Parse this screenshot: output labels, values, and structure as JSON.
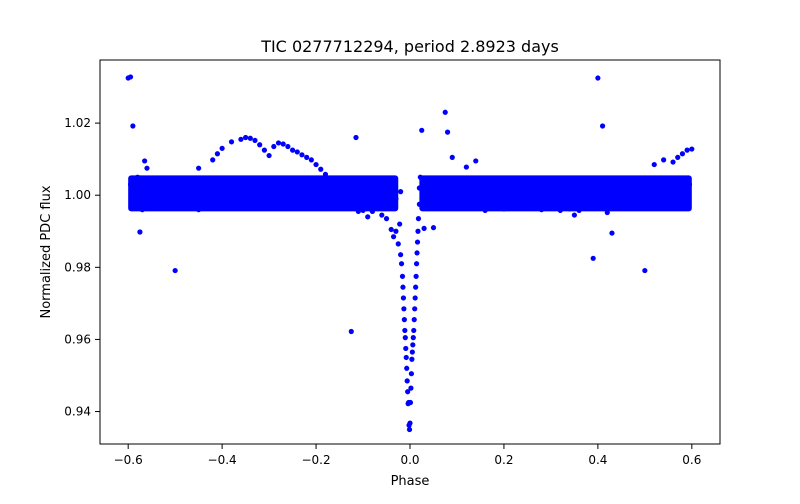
{
  "chart_data": {
    "type": "scatter",
    "title": "TIC 0277712294, period 2.8923 days",
    "xlabel": "Phase",
    "ylabel": "Normalized PDC flux",
    "xlim": [
      -0.66,
      0.66
    ],
    "ylim": [
      0.931,
      1.0375
    ],
    "xticks": [
      -0.6,
      -0.4,
      -0.2,
      0.0,
      0.2,
      0.4,
      0.6
    ],
    "xtick_labels": [
      "−0.6",
      "−0.4",
      "−0.2",
      "0.0",
      "0.2",
      "0.4",
      "0.6"
    ],
    "yticks": [
      0.94,
      0.96,
      0.98,
      1.0,
      1.02
    ],
    "ytick_labels": [
      "0.94",
      "0.96",
      "0.98",
      "1.00",
      "1.02"
    ],
    "grid": false,
    "marker_color": "#0000ff",
    "series": [
      {
        "x": [
          -0.595,
          -0.59,
          -0.58,
          -0.57,
          -0.56,
          -0.55,
          -0.54,
          -0.53,
          -0.52,
          -0.51,
          -0.5,
          -0.49,
          -0.48,
          -0.47,
          -0.46,
          -0.45,
          -0.44,
          -0.43,
          -0.42,
          -0.41,
          -0.4,
          -0.39,
          -0.38,
          -0.37,
          -0.36,
          -0.35,
          -0.34,
          -0.33,
          -0.32,
          -0.31,
          -0.3,
          -0.29,
          -0.28,
          -0.27,
          -0.26,
          -0.25,
          -0.24,
          -0.23,
          -0.22,
          -0.21,
          -0.2,
          -0.19,
          -0.18,
          -0.17,
          -0.16,
          -0.15,
          -0.14,
          -0.13,
          -0.12,
          -0.11,
          -0.1,
          -0.09,
          -0.08,
          -0.07,
          -0.06,
          -0.05,
          -0.04,
          -0.03,
          -0.02,
          0.02,
          0.03,
          0.04,
          0.05,
          0.06,
          0.07,
          0.08,
          0.09,
          0.1,
          0.11,
          0.12,
          0.13,
          0.14,
          0.15,
          0.16,
          0.17,
          0.18,
          0.19,
          0.2,
          0.21,
          0.22,
          0.23,
          0.24,
          0.25,
          0.26,
          0.27,
          0.28,
          0.29,
          0.3,
          0.31,
          0.32,
          0.33,
          0.34,
          0.35,
          0.36,
          0.37,
          0.38,
          0.39,
          0.4,
          0.41,
          0.42,
          0.43,
          0.44,
          0.45,
          0.46,
          0.47,
          0.48,
          0.49,
          0.5,
          0.51,
          0.52,
          0.53,
          0.54,
          0.55,
          0.56,
          0.57,
          0.58,
          0.59,
          0.595
        ],
        "y": [
          1.003,
          0.997,
          1.005,
          0.996,
          1.002,
          0.998,
          1.004,
          0.999,
          1.001,
          0.997,
          1.003,
          0.998,
          1.002,
          0.999,
          1.004,
          0.996,
          1.001,
          0.998,
          1.003,
          0.997,
          1.002,
          0.999,
          1.004,
          0.998,
          1.001,
          0.997,
          1.003,
          0.999,
          1.002,
          0.998,
          1.001,
          0.997,
          1.004,
          0.999,
          1.002,
          0.998,
          1.003,
          0.997,
          1.001,
          0.999,
          1.002,
          0.998,
          1.003,
          0.997,
          1.001,
          0.999,
          1.004,
          0.998,
          1.002,
          0.997,
          1.003,
          0.999,
          1.001,
          0.998,
          1.002,
          0.997,
          1.003,
          0.999,
          1.001,
          1.002,
          0.998,
          1.003,
          0.997,
          1.001,
          0.999,
          1.004,
          0.998,
          1.002,
          0.997,
          1.003,
          0.999,
          1.001,
          0.998,
          1.002,
          0.997,
          1.004,
          0.999,
          1.001,
          0.998,
          1.003,
          0.997,
          1.002,
          0.999,
          1.001,
          0.998,
          1.004,
          0.997,
          1.002,
          0.999,
          1.003,
          0.998,
          1.001,
          0.997,
          1.002,
          0.999,
          1.004,
          0.998,
          1.001,
          0.997,
          1.003,
          0.999,
          1.002,
          0.998,
          1.001,
          0.997,
          1.004,
          0.999,
          1.002,
          0.998,
          1.003,
          0.997,
          1.001,
          0.999,
          1.002,
          0.998,
          1.004,
          0.997,
          1.003
        ]
      },
      {
        "x": [
          -0.6,
          -0.595,
          -0.59,
          -0.575,
          -0.565,
          -0.56,
          -0.5,
          -0.48,
          -0.45,
          -0.42,
          -0.41,
          -0.4,
          -0.38,
          -0.36,
          -0.35,
          -0.34,
          -0.33,
          -0.32,
          -0.31,
          -0.3,
          -0.29,
          -0.28,
          -0.27,
          -0.26,
          -0.25,
          -0.24,
          -0.23,
          -0.22,
          -0.21,
          -0.2,
          -0.19,
          -0.18,
          -0.17,
          -0.15,
          -0.125,
          -0.115,
          -0.11,
          -0.1,
          -0.09,
          -0.08,
          -0.06,
          -0.05,
          -0.04,
          -0.035,
          -0.03,
          -0.025,
          -0.022,
          -0.02,
          -0.018,
          -0.016,
          -0.015,
          -0.014,
          -0.013,
          -0.012,
          -0.011,
          -0.01,
          -0.009,
          -0.008,
          -0.007,
          -0.006,
          -0.005,
          -0.004,
          -0.003,
          -0.002,
          -0.001,
          0.0,
          0.001,
          0.002,
          0.003,
          0.004,
          0.005,
          0.006,
          0.007,
          0.008,
          0.009,
          0.01,
          0.011,
          0.012,
          0.013,
          0.014,
          0.015,
          0.016,
          0.017,
          0.018,
          0.02,
          0.022,
          0.025,
          0.03,
          0.04,
          0.05,
          0.06,
          0.075,
          0.08,
          0.09,
          0.1,
          0.12,
          0.14,
          0.16,
          0.2,
          0.28,
          0.32,
          0.33,
          0.34,
          0.35,
          0.36,
          0.37,
          0.38,
          0.39,
          0.4,
          0.41,
          0.42,
          0.43,
          0.44,
          0.45,
          0.46,
          0.48,
          0.5,
          0.52,
          0.54,
          0.56,
          0.57,
          0.58,
          0.59,
          0.6
        ],
        "y": [
          1.0325,
          1.0328,
          1.0192,
          0.9898,
          1.0095,
          1.0075,
          0.9791,
          1.0035,
          1.0075,
          1.0098,
          1.0115,
          1.013,
          1.0148,
          1.0155,
          1.016,
          1.0158,
          1.0152,
          1.014,
          1.0125,
          1.011,
          1.0135,
          1.0145,
          1.0142,
          1.0135,
          1.0125,
          1.012,
          1.0112,
          1.0105,
          1.0098,
          1.0085,
          1.0072,
          1.0058,
          1.0042,
          0.9975,
          0.9622,
          1.016,
          0.9955,
          0.9958,
          0.994,
          0.9955,
          0.9945,
          0.9935,
          0.9905,
          0.9885,
          0.99,
          0.9865,
          0.992,
          0.9835,
          0.981,
          0.9775,
          0.9745,
          0.9715,
          0.9685,
          0.9655,
          0.9625,
          0.9605,
          0.9575,
          0.955,
          0.952,
          0.9485,
          0.9455,
          0.9422,
          0.9425,
          0.9362,
          0.935,
          0.9368,
          0.9425,
          0.9465,
          0.9505,
          0.9545,
          0.9565,
          0.9585,
          0.9605,
          0.9625,
          0.9655,
          0.9685,
          0.9715,
          0.9745,
          0.9775,
          0.981,
          0.984,
          0.987,
          0.99,
          0.9935,
          0.9975,
          1.005,
          1.018,
          0.9908,
          1.0045,
          0.991,
          1.0025,
          1.023,
          1.0175,
          1.0105,
          1.0035,
          1.0078,
          1.0095,
          0.9958,
          0.9962,
          0.996,
          0.9958,
          0.9975,
          0.9962,
          0.9945,
          0.9958,
          0.997,
          1.0025,
          0.9825,
          1.0325,
          1.0192,
          0.9952,
          0.9895,
          0.9985,
          0.9975,
          0.998,
          0.9965,
          0.9791,
          1.0085,
          1.0098,
          1.0092,
          1.0105,
          1.0115,
          1.0125,
          1.0128
        ]
      }
    ]
  }
}
